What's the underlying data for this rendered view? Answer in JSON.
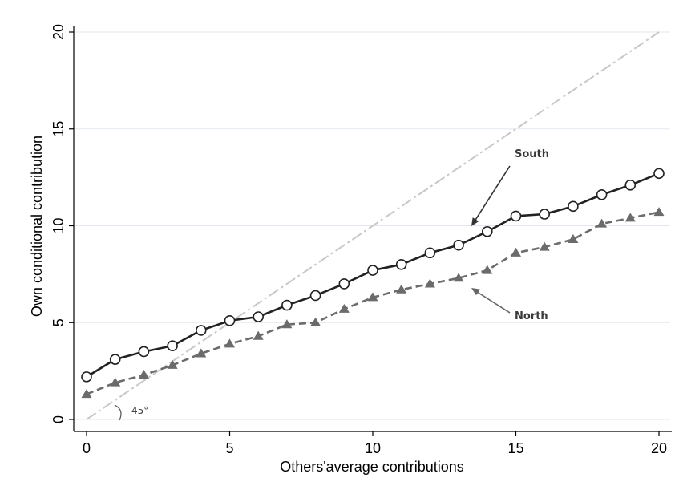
{
  "chart_data": {
    "type": "line",
    "xlabel": "Others'average contributions",
    "ylabel": "Own conditional contribution",
    "xlim": [
      0,
      20
    ],
    "ylim": [
      0,
      20
    ],
    "xticks": [
      "0",
      "5",
      "10",
      "15",
      "20"
    ],
    "yticks": [
      "0",
      "5",
      "10",
      "15",
      "20"
    ],
    "grid": "horizontal",
    "x": [
      0,
      1,
      2,
      3,
      4,
      5,
      6,
      7,
      8,
      9,
      10,
      11,
      12,
      13,
      14,
      15,
      16,
      17,
      18,
      19,
      20
    ],
    "series": [
      {
        "name": "South",
        "marker": "circle",
        "line": "solid",
        "color": "#222222",
        "values": [
          2.2,
          3.1,
          3.5,
          3.8,
          4.6,
          5.1,
          5.3,
          5.9,
          6.4,
          7.0,
          7.7,
          8.0,
          8.6,
          9.0,
          9.7,
          10.5,
          10.6,
          11.0,
          11.6,
          12.1,
          12.7
        ]
      },
      {
        "name": "North",
        "marker": "triangle",
        "line": "dashed",
        "color": "#6b6b6b",
        "values": [
          1.3,
          1.9,
          2.3,
          2.8,
          3.4,
          3.9,
          4.3,
          4.9,
          5.0,
          5.7,
          6.3,
          6.7,
          7.0,
          7.3,
          7.7,
          8.6,
          8.9,
          9.3,
          10.1,
          10.4,
          10.7
        ]
      }
    ],
    "reference_line": {
      "slope": 1,
      "color": "#c8c8c8"
    },
    "annotations": {
      "south": "South",
      "north": "North",
      "angle": "45°"
    }
  }
}
